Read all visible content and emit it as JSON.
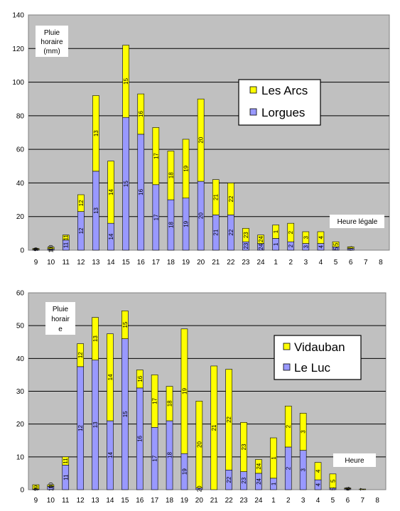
{
  "colors": {
    "top": "#ffff00",
    "bottom": "#9999ff",
    "plot_bg": "#c0c0c0",
    "grid": "#000000"
  },
  "chart_data": [
    {
      "type": "bar",
      "stacked": true,
      "categories": [
        "9",
        "10",
        "11",
        "12",
        "13",
        "14",
        "15",
        "16",
        "17",
        "18",
        "19",
        "20",
        "21",
        "22",
        "23",
        "24",
        "1",
        "2",
        "3",
        "4",
        "5",
        "6",
        "7",
        "8"
      ],
      "series": [
        {
          "name": "Lorgues",
          "values": [
            0.5,
            0.8,
            6,
            23,
            47,
            16,
            79,
            69,
            39,
            30,
            31,
            41,
            21,
            21,
            5,
            4,
            7,
            5,
            4,
            4,
            2,
            1,
            0,
            0
          ]
        },
        {
          "name": "Les Arcs",
          "values": [
            0.5,
            1,
            3,
            10,
            45,
            37,
            43,
            24,
            34,
            29,
            35,
            49,
            21,
            19,
            8,
            5,
            8,
            11,
            7,
            7,
            3,
            1,
            0,
            0
          ]
        }
      ],
      "bar_labels": [
        "9",
        "10",
        "11",
        "12",
        "13",
        "14",
        "15",
        "16",
        "17",
        "18",
        "19",
        "20",
        "21",
        "22",
        "23",
        "24",
        "1",
        "2",
        "3",
        "4",
        "5",
        "6",
        "7",
        "8"
      ],
      "ylim": [
        0,
        140
      ],
      "yticks": [
        0,
        20,
        40,
        60,
        80,
        100,
        120,
        140
      ],
      "annotation": [
        "Pluie",
        "horaire",
        "(mm)"
      ],
      "x_note": "Heure légale",
      "grid": true,
      "legend_position": "right"
    },
    {
      "type": "bar",
      "stacked": true,
      "categories": [
        "9",
        "10",
        "11",
        "12",
        "13",
        "14",
        "15",
        "16",
        "17",
        "18",
        "19",
        "20",
        "21",
        "22",
        "23",
        "24",
        "1",
        "2",
        "3",
        "4",
        "5",
        "6",
        "7",
        "8"
      ],
      "series": [
        {
          "name": "Le Luc",
          "values": [
            0.2,
            1,
            7.5,
            37.5,
            39.5,
            21,
            46,
            31,
            19,
            21,
            11,
            0.5,
            0,
            6,
            5.5,
            5,
            3.5,
            13,
            12,
            3,
            0.5,
            0.3,
            0,
            0
          ]
        },
        {
          "name": "Vidauban",
          "values": [
            1.3,
            0.5,
            2.5,
            7,
            13,
            26.5,
            8.5,
            5.5,
            16,
            10.5,
            38,
            26.5,
            37.7,
            30.7,
            15,
            4.2,
            12.3,
            12.5,
            11.3,
            5.3,
            4.3,
            0.2,
            0.2,
            0
          ]
        }
      ],
      "bar_labels": [
        "9",
        "10",
        "11",
        "12",
        "13",
        "14",
        "15",
        "16",
        "17",
        "18",
        "19",
        "20",
        "21",
        "22",
        "23",
        "24",
        "1",
        "2",
        "3",
        "4",
        "5",
        "6",
        "7",
        "8"
      ],
      "ylim": [
        0,
        60
      ],
      "yticks": [
        0,
        10,
        20,
        30,
        40,
        50,
        60
      ],
      "annotation": [
        "Pluie",
        "horair",
        "e"
      ],
      "x_note": "Heure",
      "grid": true,
      "legend_position": "right"
    }
  ]
}
